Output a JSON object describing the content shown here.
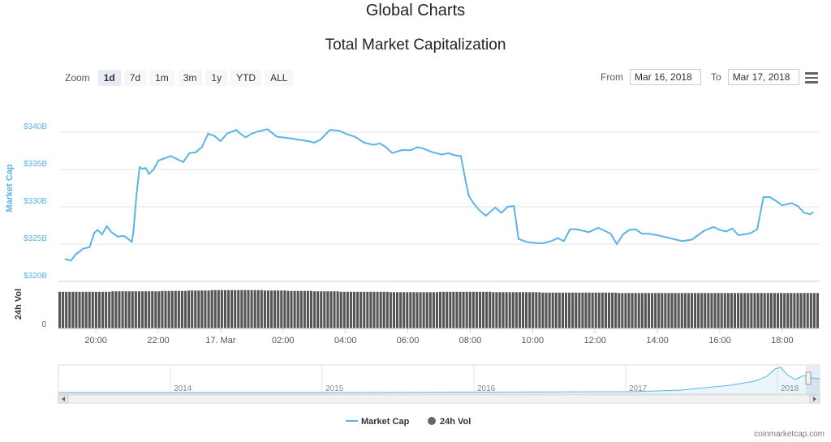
{
  "header": {
    "page_title": "Global Charts",
    "chart_title": "Total Market Capitalization"
  },
  "zoom": {
    "label": "Zoom",
    "buttons": [
      "1d",
      "7d",
      "1m",
      "3m",
      "1y",
      "YTD",
      "ALL"
    ],
    "active": "1d"
  },
  "range": {
    "from_label": "From",
    "from_value": "Mar 16, 2018",
    "to_label": "To",
    "to_value": "Mar 17, 2018"
  },
  "chart_data": {
    "type": "line",
    "series": [
      {
        "name": "Market Cap",
        "color": "#5ab4e5",
        "points": [
          [
            19.0,
            323.0
          ],
          [
            19.2,
            322.8
          ],
          [
            19.35,
            323.6
          ],
          [
            19.6,
            324.4
          ],
          [
            19.8,
            324.6
          ],
          [
            19.95,
            326.5
          ],
          [
            20.05,
            326.9
          ],
          [
            20.2,
            326.3
          ],
          [
            20.35,
            327.4
          ],
          [
            20.5,
            326.6
          ],
          [
            20.7,
            326.0
          ],
          [
            20.9,
            326.1
          ],
          [
            21.0,
            325.8
          ],
          [
            21.15,
            325.3
          ],
          [
            21.2,
            326.5
          ],
          [
            21.3,
            331.5
          ],
          [
            21.4,
            335.3
          ],
          [
            21.5,
            335.1
          ],
          [
            21.6,
            335.2
          ],
          [
            21.7,
            334.4
          ],
          [
            21.85,
            335.0
          ],
          [
            22.0,
            336.2
          ],
          [
            22.2,
            336.5
          ],
          [
            22.4,
            336.8
          ],
          [
            22.6,
            336.4
          ],
          [
            22.8,
            336.0
          ],
          [
            23.0,
            337.2
          ],
          [
            23.2,
            337.3
          ],
          [
            23.4,
            338.0
          ],
          [
            23.6,
            339.8
          ],
          [
            23.8,
            339.5
          ],
          [
            24.0,
            338.8
          ],
          [
            24.2,
            339.8
          ],
          [
            24.5,
            340.3
          ],
          [
            24.6,
            339.9
          ],
          [
            24.8,
            339.3
          ],
          [
            25.0,
            339.8
          ],
          [
            25.2,
            340.1
          ],
          [
            25.5,
            340.4
          ],
          [
            25.8,
            339.4
          ],
          [
            26.2,
            339.2
          ],
          [
            26.5,
            339.0
          ],
          [
            26.8,
            338.8
          ],
          [
            27.0,
            338.6
          ],
          [
            27.2,
            339.0
          ],
          [
            27.5,
            340.3
          ],
          [
            27.8,
            340.2
          ],
          [
            28.0,
            339.8
          ],
          [
            28.3,
            339.4
          ],
          [
            28.6,
            338.6
          ],
          [
            28.9,
            338.3
          ],
          [
            29.1,
            338.5
          ],
          [
            29.3,
            338.0
          ],
          [
            29.5,
            337.2
          ],
          [
            29.8,
            337.6
          ],
          [
            30.1,
            337.6
          ],
          [
            30.3,
            338.0
          ],
          [
            30.5,
            337.8
          ],
          [
            30.8,
            337.3
          ],
          [
            31.1,
            337.0
          ],
          [
            31.3,
            337.2
          ],
          [
            31.5,
            336.9
          ],
          [
            31.7,
            336.8
          ],
          [
            31.85,
            333.5
          ],
          [
            31.95,
            331.5
          ],
          [
            32.1,
            330.5
          ],
          [
            32.3,
            329.5
          ],
          [
            32.5,
            328.8
          ],
          [
            32.8,
            329.9
          ],
          [
            33.0,
            329.2
          ],
          [
            33.2,
            330.0
          ],
          [
            33.4,
            330.1
          ],
          [
            33.55,
            325.7
          ],
          [
            33.8,
            325.3
          ],
          [
            34.0,
            325.2
          ],
          [
            34.3,
            325.1
          ],
          [
            34.6,
            325.4
          ],
          [
            34.8,
            325.8
          ],
          [
            35.0,
            325.4
          ],
          [
            35.2,
            327.0
          ],
          [
            35.4,
            327.0
          ],
          [
            35.6,
            326.8
          ],
          [
            35.8,
            326.6
          ],
          [
            36.1,
            327.2
          ],
          [
            36.3,
            326.8
          ],
          [
            36.5,
            326.4
          ],
          [
            36.7,
            325.0
          ],
          [
            36.9,
            326.3
          ],
          [
            37.1,
            326.9
          ],
          [
            37.3,
            327.0
          ],
          [
            37.5,
            326.4
          ],
          [
            37.7,
            326.4
          ],
          [
            38.0,
            326.2
          ],
          [
            38.2,
            326.0
          ],
          [
            38.5,
            325.7
          ],
          [
            38.8,
            325.4
          ],
          [
            39.1,
            325.6
          ],
          [
            39.3,
            326.2
          ],
          [
            39.5,
            326.8
          ],
          [
            39.8,
            327.3
          ],
          [
            40.0,
            326.9
          ],
          [
            40.2,
            326.7
          ],
          [
            40.4,
            327.1
          ],
          [
            40.6,
            326.2
          ],
          [
            40.8,
            326.3
          ],
          [
            41.0,
            326.5
          ],
          [
            41.2,
            327.0
          ],
          [
            41.4,
            331.3
          ],
          [
            41.6,
            331.3
          ],
          [
            41.8,
            330.8
          ],
          [
            42.0,
            330.2
          ],
          [
            42.3,
            330.5
          ],
          [
            42.5,
            330.1
          ],
          [
            42.7,
            329.2
          ],
          [
            42.9,
            329.0
          ],
          [
            43.0,
            329.3
          ]
        ]
      },
      {
        "name": "24h Vol",
        "color": "#434348"
      }
    ],
    "y_axis": {
      "title": "Market Cap",
      "ticks": [
        "$320B",
        "$325B",
        "$330B",
        "$335B",
        "$340B"
      ],
      "min": 320,
      "max": 345
    },
    "vol_axis": {
      "title": "24h Vol",
      "ticks": [
        "0"
      ]
    },
    "x_axis": {
      "min": 18.8,
      "max": 43.2,
      "ticks": [
        [
          20,
          "20:00"
        ],
        [
          22,
          "22:00"
        ],
        [
          24,
          "17. Mar"
        ],
        [
          26,
          "02:00"
        ],
        [
          28,
          "04:00"
        ],
        [
          30,
          "06:00"
        ],
        [
          32,
          "08:00"
        ],
        [
          34,
          "10:00"
        ],
        [
          36,
          "12:00"
        ],
        [
          38,
          "14:00"
        ],
        [
          40,
          "16:00"
        ],
        [
          42,
          "18:00"
        ]
      ]
    },
    "volume_bars": {
      "note": "uniform-ish volume bars",
      "rel_heights": [
        0.87,
        0.87,
        0.88,
        0.88,
        0.89,
        0.9,
        0.91,
        0.91,
        0.9,
        0.89,
        0.88,
        0.87,
        0.87,
        0.86,
        0.86,
        0.87,
        0.87,
        0.86,
        0.86,
        0.85,
        0.85,
        0.85,
        0.84,
        0.84,
        0.84,
        0.84,
        0.84,
        0.84,
        0.84,
        0.84
      ]
    },
    "navigator": {
      "years": [
        "2014",
        "2015",
        "2016",
        "2017",
        "2018"
      ]
    },
    "legend": [
      "Market Cap",
      "24h Vol"
    ],
    "grid": true,
    "legend_position": "bottom-center"
  },
  "credit": "coinmarketcap.com"
}
